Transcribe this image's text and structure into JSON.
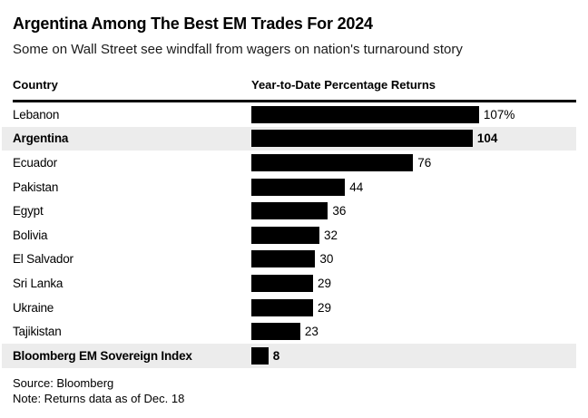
{
  "header": {
    "title": "Argentina Among The Best EM Trades For 2024",
    "subtitle": "Some on Wall Street see windfall from wagers on nation's turnaround story"
  },
  "columns": {
    "country_header": "Country",
    "returns_header": "Year-to-Date Percentage Returns"
  },
  "chart_data": {
    "type": "bar",
    "orientation": "horizontal",
    "title": "Argentina Among The Best EM Trades For 2024",
    "xlabel": "Year-to-Date Percentage Returns",
    "ylabel": "Country",
    "xlim": [
      0,
      110
    ],
    "grid": false,
    "legend": false,
    "bar_color": "#000000",
    "highlight_band_color": "#ececec",
    "categories": [
      "Lebanon",
      "Argentina",
      "Ecuador",
      "Pakistan",
      "Egypt",
      "Bolivia",
      "El Salvador",
      "Sri Lanka",
      "Ukraine",
      "Tajikistan",
      "Bloomberg EM Sovereign Index"
    ],
    "values": [
      107,
      104,
      76,
      44,
      36,
      32,
      30,
      29,
      29,
      23,
      8
    ],
    "value_labels": [
      "107%",
      "104",
      "76",
      "44",
      "36",
      "32",
      "30",
      "29",
      "29",
      "23",
      "8"
    ],
    "highlighted_indices": [
      1,
      10
    ]
  },
  "footer": {
    "source": "Source: Bloomberg",
    "note": "Note: Returns data as of Dec. 18"
  }
}
